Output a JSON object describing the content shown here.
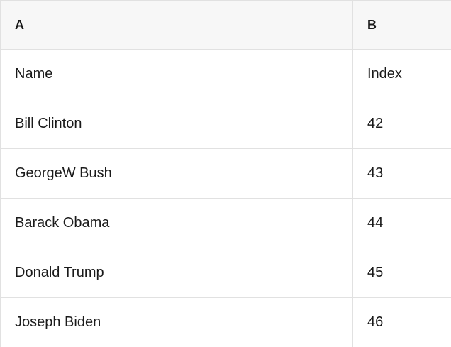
{
  "colors": {
    "header_bg": "#f7f7f7",
    "border": "#e1e1e1",
    "text": "#1a1a1a",
    "row_bg": "#ffffff"
  },
  "table": {
    "column_headers": [
      "A",
      "B"
    ],
    "rows": [
      [
        "Name",
        "Index"
      ],
      [
        "Bill Clinton",
        "42"
      ],
      [
        "GeorgeW Bush",
        "43"
      ],
      [
        "Barack Obama",
        "44"
      ],
      [
        "Donald Trump",
        "45"
      ],
      [
        "Joseph Biden",
        "46"
      ]
    ]
  }
}
